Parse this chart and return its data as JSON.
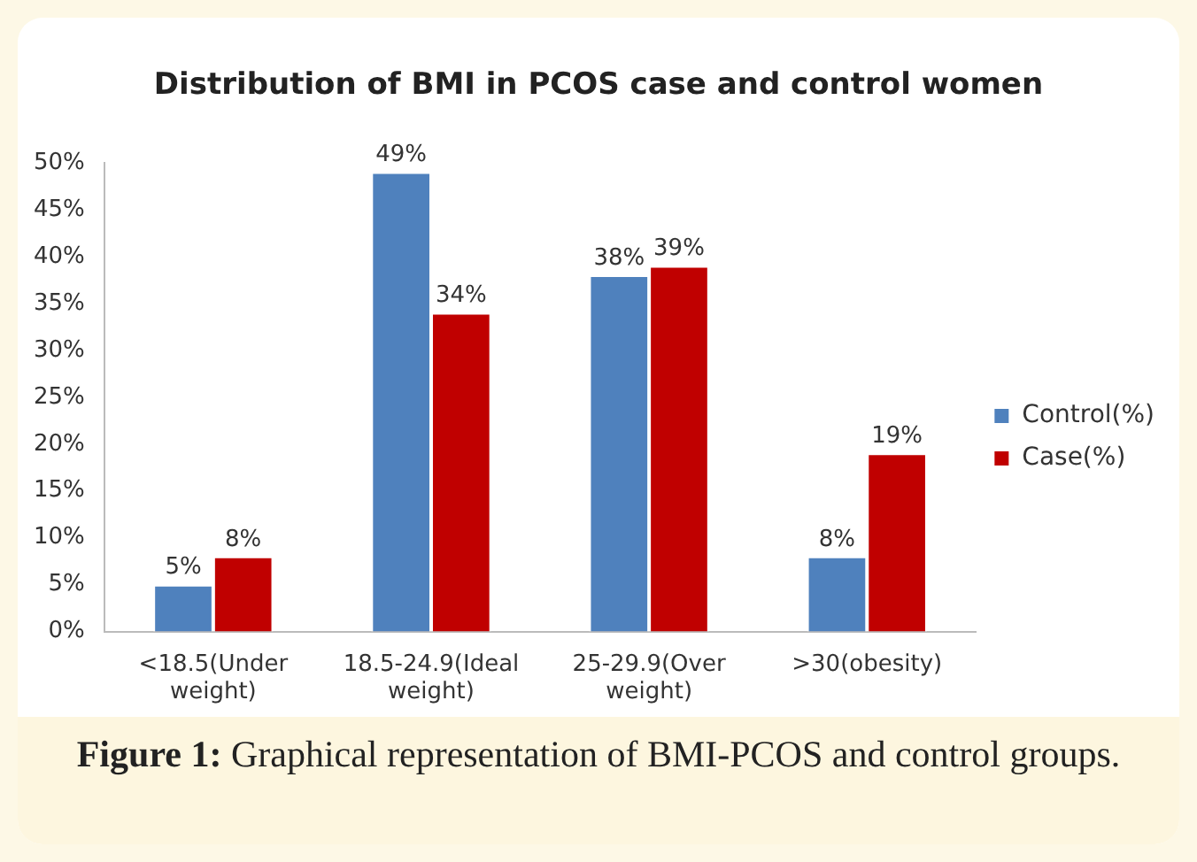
{
  "chart_data": {
    "type": "bar",
    "title": "Distribution of BMI in PCOS case and control women",
    "categories": [
      "<18.5(Under weight)",
      "18.5-24.9(Ideal weight)",
      "25-29.9(Over weight)",
      ">30(obesity)"
    ],
    "series": [
      {
        "name": "Control(%)",
        "color": "#4f81bd",
        "values": [
          5,
          49,
          38,
          8
        ],
        "value_labels": [
          "5%",
          "49%",
          "38%",
          "8%"
        ]
      },
      {
        "name": "Case(%)",
        "color": "#c00000",
        "values": [
          8,
          34,
          39,
          19
        ],
        "value_labels": [
          "8%",
          "34%",
          "39%",
          "19%"
        ]
      }
    ],
    "ylim": [
      0,
      50
    ],
    "yticks": [
      {
        "value": 0,
        "label": "0%"
      },
      {
        "value": 5,
        "label": "5%"
      },
      {
        "value": 10,
        "label": "10%"
      },
      {
        "value": 15,
        "label": "15%"
      },
      {
        "value": 20,
        "label": "20%"
      },
      {
        "value": 25,
        "label": "25%"
      },
      {
        "value": 30,
        "label": "30%"
      },
      {
        "value": 35,
        "label": "35%"
      },
      {
        "value": 40,
        "label": "40%"
      },
      {
        "value": 45,
        "label": "45%"
      },
      {
        "value": 50,
        "label": "50%"
      }
    ],
    "grid": false,
    "legend": "right",
    "annotations": [
      "Figure 1: Graphical representation of BMI-PCOS and control groups."
    ]
  }
}
